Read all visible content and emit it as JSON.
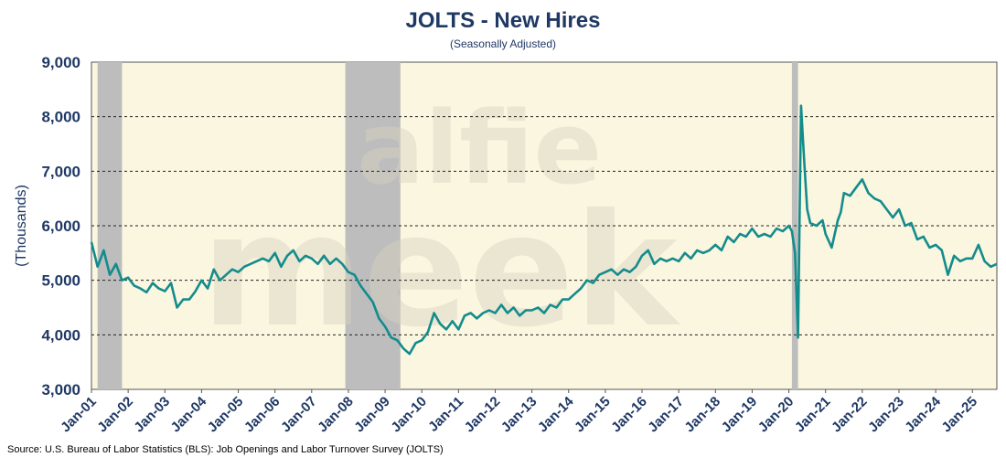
{
  "chart_data": {
    "type": "line",
    "title": "JOLTS - New Hires",
    "subtitle": "(Seasonally Adjusted)",
    "ylabel": "(Thousands)",
    "xlabel": "",
    "source": "Source: U.S. Bureau of Labor Statistics (BLS): Job Openings and Labor Turnover Survey (JOLTS)",
    "watermark": [
      "alfie",
      "meek"
    ],
    "ylim": [
      3000,
      9000
    ],
    "yticks": [
      3000,
      4000,
      5000,
      6000,
      7000,
      8000,
      9000
    ],
    "ytick_labels": [
      "3,000",
      "4,000",
      "5,000",
      "6,000",
      "7,000",
      "8,000",
      "9,000"
    ],
    "xlim": [
      "2001-01",
      "2025-09"
    ],
    "xtick_labels": [
      "Jan-01",
      "Jan-02",
      "Jan-03",
      "Jan-04",
      "Jan-05",
      "Jan-06",
      "Jan-07",
      "Jan-08",
      "Jan-09",
      "Jan-10",
      "Jan-11",
      "Jan-12",
      "Jan-13",
      "Jan-14",
      "Jan-15",
      "Jan-16",
      "Jan-17",
      "Jan-18",
      "Jan-19",
      "Jan-20",
      "Jan-21",
      "Jan-22",
      "Jan-23",
      "Jan-24",
      "Jan-25"
    ],
    "grid": "horizontal dashed",
    "recessions": [
      {
        "start": "2001-03",
        "end": "2001-11"
      },
      {
        "start": "2007-12",
        "end": "2009-06"
      },
      {
        "start": "2020-02",
        "end": "2020-04"
      }
    ],
    "colors": {
      "line": "#138c8c",
      "plot_background": "#faf6e0",
      "recession": "#bdbdbd",
      "text": "#1f3864"
    },
    "series": [
      {
        "points": [
          [
            "2001-01",
            5700
          ],
          [
            "2001-03",
            5250
          ],
          [
            "2001-05",
            5550
          ],
          [
            "2001-07",
            5100
          ],
          [
            "2001-09",
            5300
          ],
          [
            "2001-11",
            5000
          ],
          [
            "2002-01",
            5050
          ],
          [
            "2002-03",
            4900
          ],
          [
            "2002-05",
            4850
          ],
          [
            "2002-07",
            4780
          ],
          [
            "2002-09",
            4950
          ],
          [
            "2002-11",
            4850
          ],
          [
            "2003-01",
            4800
          ],
          [
            "2003-03",
            4950
          ],
          [
            "2003-05",
            4500
          ],
          [
            "2003-07",
            4650
          ],
          [
            "2003-09",
            4650
          ],
          [
            "2003-11",
            4800
          ],
          [
            "2004-01",
            5000
          ],
          [
            "2004-03",
            4850
          ],
          [
            "2004-05",
            5200
          ],
          [
            "2004-07",
            5000
          ],
          [
            "2004-09",
            5100
          ],
          [
            "2004-11",
            5200
          ],
          [
            "2005-01",
            5150
          ],
          [
            "2005-03",
            5250
          ],
          [
            "2005-05",
            5300
          ],
          [
            "2005-07",
            5350
          ],
          [
            "2005-09",
            5400
          ],
          [
            "2005-11",
            5350
          ],
          [
            "2006-01",
            5500
          ],
          [
            "2006-03",
            5250
          ],
          [
            "2006-05",
            5450
          ],
          [
            "2006-07",
            5550
          ],
          [
            "2006-09",
            5350
          ],
          [
            "2006-11",
            5450
          ],
          [
            "2007-01",
            5400
          ],
          [
            "2007-03",
            5300
          ],
          [
            "2007-05",
            5450
          ],
          [
            "2007-07",
            5300
          ],
          [
            "2007-09",
            5400
          ],
          [
            "2007-11",
            5300
          ],
          [
            "2008-01",
            5150
          ],
          [
            "2008-03",
            5100
          ],
          [
            "2008-05",
            4900
          ],
          [
            "2008-07",
            4750
          ],
          [
            "2008-09",
            4600
          ],
          [
            "2008-11",
            4300
          ],
          [
            "2009-01",
            4150
          ],
          [
            "2009-03",
            3950
          ],
          [
            "2009-05",
            3900
          ],
          [
            "2009-07",
            3750
          ],
          [
            "2009-09",
            3650
          ],
          [
            "2009-11",
            3850
          ],
          [
            "2010-01",
            3900
          ],
          [
            "2010-03",
            4050
          ],
          [
            "2010-05",
            4400
          ],
          [
            "2010-07",
            4200
          ],
          [
            "2010-09",
            4100
          ],
          [
            "2010-11",
            4250
          ],
          [
            "2011-01",
            4100
          ],
          [
            "2011-03",
            4350
          ],
          [
            "2011-05",
            4400
          ],
          [
            "2011-07",
            4300
          ],
          [
            "2011-09",
            4400
          ],
          [
            "2011-11",
            4450
          ],
          [
            "2012-01",
            4400
          ],
          [
            "2012-03",
            4550
          ],
          [
            "2012-05",
            4400
          ],
          [
            "2012-07",
            4500
          ],
          [
            "2012-09",
            4350
          ],
          [
            "2012-11",
            4450
          ],
          [
            "2013-01",
            4450
          ],
          [
            "2013-03",
            4500
          ],
          [
            "2013-05",
            4400
          ],
          [
            "2013-07",
            4550
          ],
          [
            "2013-09",
            4500
          ],
          [
            "2013-11",
            4650
          ],
          [
            "2014-01",
            4650
          ],
          [
            "2014-03",
            4750
          ],
          [
            "2014-05",
            4850
          ],
          [
            "2014-07",
            5000
          ],
          [
            "2014-09",
            4950
          ],
          [
            "2014-11",
            5100
          ],
          [
            "2015-01",
            5150
          ],
          [
            "2015-03",
            5200
          ],
          [
            "2015-05",
            5100
          ],
          [
            "2015-07",
            5200
          ],
          [
            "2015-09",
            5150
          ],
          [
            "2015-11",
            5250
          ],
          [
            "2016-01",
            5450
          ],
          [
            "2016-03",
            5550
          ],
          [
            "2016-05",
            5300
          ],
          [
            "2016-07",
            5400
          ],
          [
            "2016-09",
            5350
          ],
          [
            "2016-11",
            5400
          ],
          [
            "2017-01",
            5350
          ],
          [
            "2017-03",
            5500
          ],
          [
            "2017-05",
            5400
          ],
          [
            "2017-07",
            5550
          ],
          [
            "2017-09",
            5500
          ],
          [
            "2017-11",
            5550
          ],
          [
            "2018-01",
            5650
          ],
          [
            "2018-03",
            5550
          ],
          [
            "2018-05",
            5800
          ],
          [
            "2018-07",
            5700
          ],
          [
            "2018-09",
            5850
          ],
          [
            "2018-11",
            5800
          ],
          [
            "2019-01",
            5950
          ],
          [
            "2019-03",
            5800
          ],
          [
            "2019-05",
            5850
          ],
          [
            "2019-07",
            5800
          ],
          [
            "2019-09",
            5950
          ],
          [
            "2019-11",
            5900
          ],
          [
            "2020-01",
            6000
          ],
          [
            "2020-02",
            5900
          ],
          [
            "2020-03",
            5500
          ],
          [
            "2020-04",
            3950
          ],
          [
            "2020-05",
            8200
          ],
          [
            "2020-06",
            7200
          ],
          [
            "2020-07",
            6300
          ],
          [
            "2020-08",
            6050
          ],
          [
            "2020-10",
            6000
          ],
          [
            "2020-12",
            6100
          ],
          [
            "2021-01",
            5850
          ],
          [
            "2021-03",
            5600
          ],
          [
            "2021-05",
            6100
          ],
          [
            "2021-06",
            6250
          ],
          [
            "2021-07",
            6600
          ],
          [
            "2021-09",
            6550
          ],
          [
            "2021-11",
            6700
          ],
          [
            "2022-01",
            6850
          ],
          [
            "2022-03",
            6600
          ],
          [
            "2022-05",
            6500
          ],
          [
            "2022-07",
            6450
          ],
          [
            "2022-09",
            6300
          ],
          [
            "2022-11",
            6150
          ],
          [
            "2023-01",
            6300
          ],
          [
            "2023-03",
            6000
          ],
          [
            "2023-05",
            6050
          ],
          [
            "2023-07",
            5750
          ],
          [
            "2023-09",
            5800
          ],
          [
            "2023-11",
            5600
          ],
          [
            "2024-01",
            5650
          ],
          [
            "2024-03",
            5550
          ],
          [
            "2024-05",
            5100
          ],
          [
            "2024-07",
            5450
          ],
          [
            "2024-09",
            5350
          ],
          [
            "2024-11",
            5400
          ],
          [
            "2025-01",
            5400
          ],
          [
            "2025-03",
            5650
          ],
          [
            "2025-05",
            5350
          ],
          [
            "2025-07",
            5250
          ],
          [
            "2025-09",
            5300
          ]
        ]
      }
    ]
  }
}
